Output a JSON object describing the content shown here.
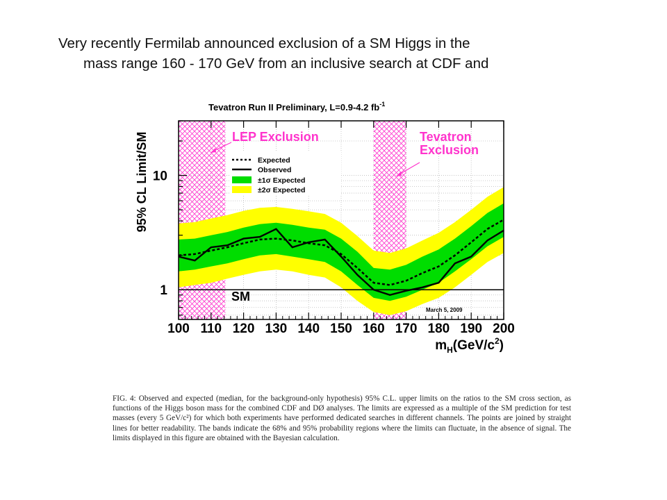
{
  "headline": {
    "line1": "Very recently Fermilab announced exclusion of a SM Higgs in the",
    "line2": "mass range 160 - 170 GeV from an inclusive search at CDF and"
  },
  "chart_data": {
    "type": "line",
    "title": "Tevatron Run II Preliminary, L=0.9-4.2 fb",
    "title_superscript": "-1",
    "xlabel_main": "m",
    "xlabel_sub": "H",
    "xlabel_rest": "(GeV/c",
    "xlabel_sup": "2",
    "xlabel_end": ")",
    "ylabel": "95% CL Limit/SM",
    "x_scale": "linear",
    "y_scale": "log",
    "xlim": [
      100,
      200
    ],
    "ylim": [
      0.55,
      30
    ],
    "x_ticks": [
      100,
      110,
      120,
      130,
      140,
      150,
      160,
      170,
      180,
      190,
      200
    ],
    "y_ticks": [
      1,
      10
    ],
    "grid": true,
    "legend_placement": "top-left",
    "legend": [
      {
        "label": "Expected",
        "style": "dotted"
      },
      {
        "label": "Observed",
        "style": "solid"
      },
      {
        "label": "±1σ Expected",
        "style": "band",
        "color": "#00dd00"
      },
      {
        "label": "±2σ Expected",
        "style": "band",
        "color": "#ffff00"
      }
    ],
    "x": [
      100,
      105,
      110,
      115,
      120,
      125,
      130,
      135,
      140,
      145,
      150,
      155,
      160,
      165,
      170,
      175,
      180,
      185,
      190,
      195,
      200
    ],
    "series": [
      {
        "name": "Observed",
        "color": "#000000",
        "values": [
          1.95,
          1.8,
          2.35,
          2.45,
          2.8,
          2.9,
          3.4,
          2.35,
          2.6,
          2.75,
          1.95,
          1.35,
          1.0,
          0.9,
          0.98,
          1.05,
          1.15,
          1.7,
          1.95,
          2.7,
          3.3
        ]
      },
      {
        "name": "Expected",
        "color": "#000000",
        "values": [
          2.0,
          2.05,
          2.2,
          2.35,
          2.55,
          2.75,
          2.8,
          2.7,
          2.55,
          2.45,
          2.05,
          1.55,
          1.15,
          1.1,
          1.2,
          1.4,
          1.6,
          2.0,
          2.6,
          3.4,
          4.1
        ]
      }
    ],
    "band_1sigma": {
      "lower": [
        1.45,
        1.5,
        1.6,
        1.7,
        1.85,
        2.0,
        2.05,
        1.95,
        1.85,
        1.75,
        1.45,
        1.1,
        0.85,
        0.8,
        0.87,
        1.0,
        1.15,
        1.45,
        1.85,
        2.4,
        2.9
      ],
      "upper": [
        2.75,
        2.8,
        3.0,
        3.2,
        3.5,
        3.75,
        3.85,
        3.7,
        3.5,
        3.35,
        2.8,
        2.15,
        1.55,
        1.5,
        1.65,
        1.95,
        2.25,
        2.8,
        3.6,
        4.7,
        5.7
      ]
    },
    "band_2sigma": {
      "lower": [
        1.05,
        1.1,
        1.15,
        1.25,
        1.35,
        1.45,
        1.5,
        1.45,
        1.35,
        1.28,
        1.05,
        0.8,
        0.64,
        0.6,
        0.65,
        0.75,
        0.85,
        1.05,
        1.35,
        1.75,
        2.1
      ],
      "upper": [
        3.8,
        3.9,
        4.2,
        4.5,
        4.9,
        5.2,
        5.3,
        5.1,
        4.85,
        4.6,
        3.85,
        2.95,
        2.2,
        2.1,
        2.3,
        2.7,
        3.15,
        3.9,
        5.0,
        6.5,
        7.9
      ]
    },
    "sm_line_value": 1,
    "exclusion_regions": [
      {
        "name": "LEP Exclusion",
        "range": [
          100,
          114.4
        ],
        "color": "#ff33cc"
      },
      {
        "name": "Tevatron Exclusion",
        "range": [
          160,
          170
        ],
        "color": "#ff33cc"
      }
    ],
    "annotations": {
      "lep_label": "LEP Exclusion",
      "tev_label_1": "Tevatron",
      "tev_label_2": "Exclusion",
      "sm_label": "SM",
      "date": "March 5, 2009"
    }
  },
  "caption": "FIG. 4: Observed and expected (median, for the background-only hypothesis) 95% C.L. upper limits on the ratios to the SM cross section, as functions of the Higgs boson mass for the combined CDF and DØ analyses. The limits are expressed as a multiple of the SM prediction for test masses (every 5 GeV/c²) for which both experiments have performed dedicated searches in different channels. The points are joined by straight lines for better readability. The bands indicate the 68% and 95% probability regions where the limits can fluctuate, in the absence of signal. The limits displayed in this figure are obtained with the Bayesian calculation."
}
